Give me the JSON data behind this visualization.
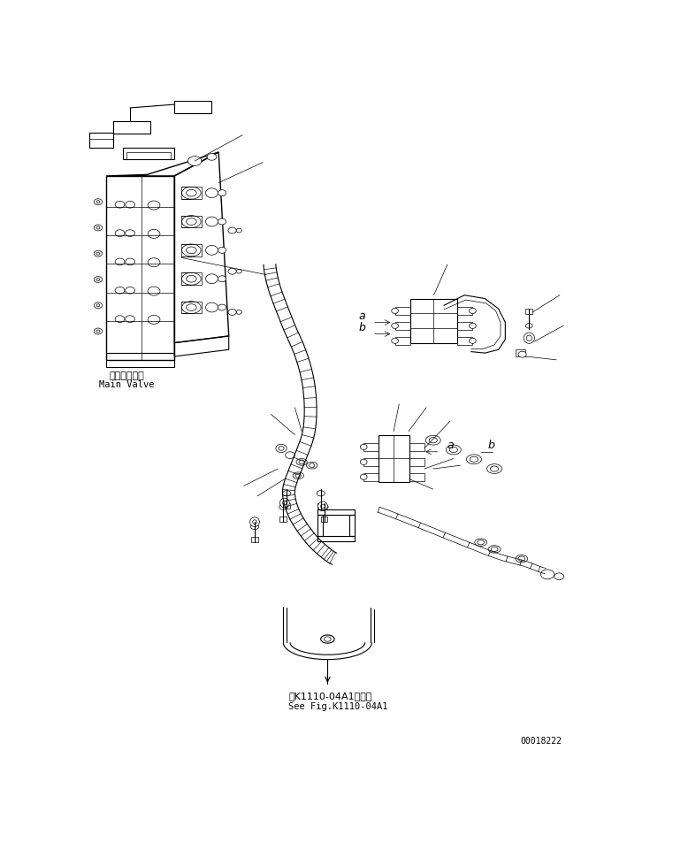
{
  "bg_color": "#ffffff",
  "line_color": "#000000",
  "fig_width": 7.61,
  "fig_height": 9.52,
  "dpi": 100,
  "label_main_valve_jp": "メインバルブ",
  "label_main_valve_en": "Main Valve",
  "label_see_fig_jp": "第K1110-04A1図参照",
  "label_see_fig_en": "See Fig.K1110-04A1",
  "label_serial": "00018222",
  "label_a_top": "a",
  "label_b_top": "b",
  "label_a_bot": "a",
  "label_b_bot": "b",
  "hose_color": "#000000",
  "lw_thin": 0.5,
  "lw_med": 0.8,
  "lw_thick": 1.0
}
